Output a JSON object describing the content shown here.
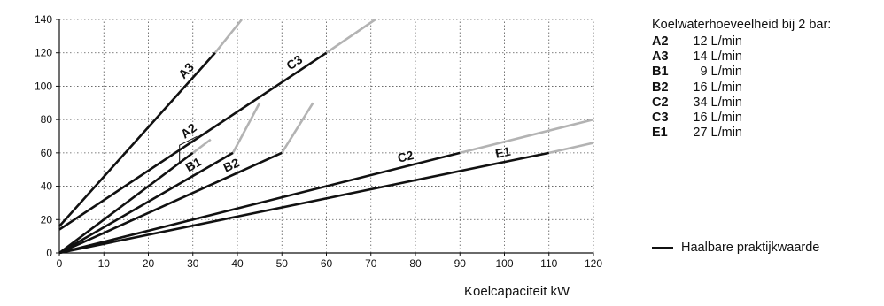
{
  "chart_data": {
    "type": "line",
    "xlabel": "Koelcapaciteit kW",
    "ylabel": "",
    "xlim": [
      0,
      120
    ],
    "ylim": [
      0,
      140
    ],
    "x_ticks": [
      0,
      10,
      20,
      30,
      40,
      50,
      60,
      70,
      80,
      90,
      100,
      110,
      120
    ],
    "y_ticks": [
      0,
      20,
      40,
      60,
      80,
      100,
      120,
      140
    ],
    "grid": true,
    "colors": {
      "practical": "#111111",
      "theoretical": "#b3b3b3"
    },
    "series": [
      {
        "name": "A3",
        "practical": [
          [
            0,
            16
          ],
          [
            35,
            120
          ]
        ],
        "theoretical": [
          [
            35,
            120
          ],
          [
            41,
            140
          ]
        ]
      },
      {
        "name": "C3",
        "practical": [
          [
            0,
            14
          ],
          [
            60,
            120
          ]
        ],
        "theoretical": [
          [
            60,
            120
          ],
          [
            71,
            140
          ]
        ]
      },
      {
        "name": "A2",
        "practical": [
          [
            0,
            0
          ],
          [
            30,
            60
          ]
        ],
        "theoretical": [
          [
            30,
            60
          ],
          [
            34,
            68
          ]
        ]
      },
      {
        "name": "B1",
        "practical": [
          [
            0,
            0
          ],
          [
            39,
            60
          ]
        ],
        "theoretical": [
          [
            39,
            60
          ],
          [
            45,
            90
          ]
        ]
      },
      {
        "name": "B2",
        "practical": [
          [
            0,
            0
          ],
          [
            50,
            60
          ]
        ],
        "theoretical": [
          [
            50,
            60
          ],
          [
            57,
            90
          ]
        ]
      },
      {
        "name": "C2",
        "practical": [
          [
            0,
            0
          ],
          [
            90,
            60
          ]
        ],
        "theoretical": [
          [
            90,
            60
          ],
          [
            120,
            80
          ]
        ]
      },
      {
        "name": "E1",
        "practical": [
          [
            0,
            0
          ],
          [
            110,
            60
          ]
        ],
        "theoretical": [
          [
            110,
            60
          ],
          [
            120,
            66
          ]
        ]
      }
    ]
  },
  "panel": {
    "title": "Koelwaterhoeveelheid bij 2 bar:",
    "rows": [
      {
        "code": "A2",
        "flow": "12 L/min"
      },
      {
        "code": "A3",
        "flow": "14 L/min"
      },
      {
        "code": "B1",
        "flow": "9 L/min"
      },
      {
        "code": "B2",
        "flow": "16 L/min"
      },
      {
        "code": "C2",
        "flow": "34 L/min"
      },
      {
        "code": "C3",
        "flow": "16 L/min"
      },
      {
        "code": "E1",
        "flow": "27 L/min"
      }
    ]
  },
  "legend": {
    "practical_label": "Haalbare praktijkwaarde"
  }
}
